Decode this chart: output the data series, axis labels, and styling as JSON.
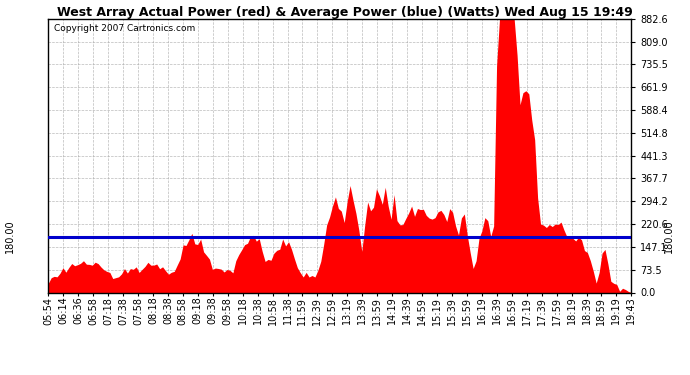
{
  "title": "West Array Actual Power (red) & Average Power (blue) (Watts) Wed Aug 15 19:49",
  "copyright": "Copyright 2007 Cartronics.com",
  "average_power": 180.0,
  "ymax": 882.6,
  "yticks": [
    0.0,
    73.5,
    147.1,
    220.6,
    294.2,
    367.7,
    441.3,
    514.8,
    588.4,
    661.9,
    735.5,
    809.0,
    882.6
  ],
  "xtick_labels": [
    "05:54",
    "06:14",
    "06:36",
    "06:58",
    "07:18",
    "07:38",
    "07:58",
    "08:18",
    "08:38",
    "08:58",
    "09:18",
    "09:38",
    "09:58",
    "10:18",
    "10:38",
    "10:58",
    "11:38",
    "11:59",
    "12:39",
    "12:59",
    "13:19",
    "13:39",
    "13:59",
    "14:19",
    "14:39",
    "14:59",
    "15:19",
    "15:39",
    "15:59",
    "16:19",
    "16:39",
    "16:59",
    "17:19",
    "17:39",
    "17:59",
    "18:19",
    "18:39",
    "18:59",
    "19:19",
    "19:43"
  ],
  "title_fontsize": 9,
  "copyright_fontsize": 6.5,
  "tick_fontsize": 7,
  "background_color": "#ffffff",
  "plot_bg_color": "#ffffff",
  "grid_color": "#aaaaaa",
  "fill_color": "#ff0000",
  "line_color": "#0000cc",
  "border_color": "#000000"
}
